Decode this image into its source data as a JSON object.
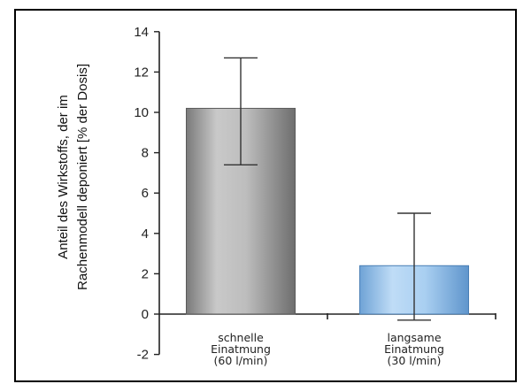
{
  "chart_data": {
    "type": "bar",
    "ylabel": [
      "Anteil des Wirkstoffs, der im",
      "Rachenmodell deponiert [% der Dosis]"
    ],
    "ylim": [
      -2,
      14
    ],
    "yticks": [
      14,
      12,
      10,
      8,
      6,
      4,
      2,
      0,
      -2
    ],
    "categories": [
      [
        "schnelle",
        "Einatmung",
        "(60 l/min)"
      ],
      [
        "langsame",
        "Einatmung",
        "(30 l/min)"
      ]
    ],
    "values": [
      10.2,
      2.4
    ],
    "error_low": [
      7.4,
      -0.3
    ],
    "error_high": [
      12.7,
      5.0
    ],
    "colors": [
      "#b4b4b4",
      "#a8d0f2"
    ]
  }
}
